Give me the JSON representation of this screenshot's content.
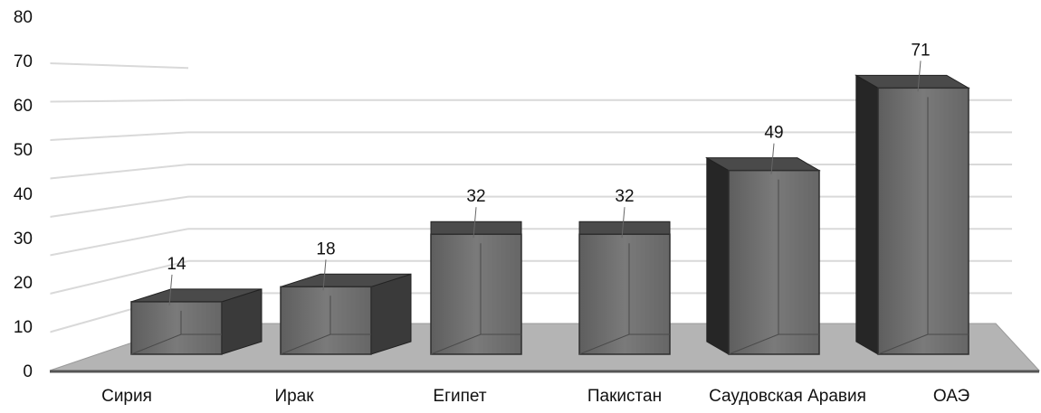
{
  "chart_data": {
    "type": "bar",
    "title": "",
    "xlabel": "",
    "ylabel": "",
    "categories": [
      "Сирия",
      "Ирак",
      "Египет",
      "Пакистан",
      "Саудовская Аравия",
      "ОАЭ"
    ],
    "values": [
      14,
      18,
      32,
      32,
      49,
      71
    ],
    "ylim": [
      0,
      80
    ],
    "yticks": [
      "0",
      "10",
      "20",
      "30",
      "40",
      "50",
      "60",
      "70",
      "80"
    ],
    "grid": true,
    "legend": "none",
    "style": "3d-column",
    "colors": {
      "bar_front": "#6d6d6d",
      "bar_side": "#3a3a3a",
      "bar_top": "#4a4a4a",
      "floor": "#b4b4b4",
      "grid": "#d9d9d9",
      "axis": "#555555",
      "text": "#111111"
    }
  }
}
